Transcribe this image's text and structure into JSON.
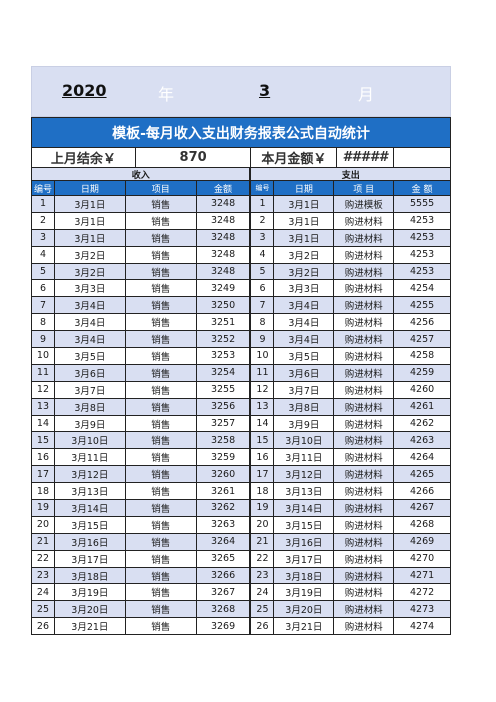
{
  "header": {
    "year": "2020",
    "year_label": "年",
    "month": "3",
    "month_label": "月"
  },
  "title": "模板-每月收入支出财务报表公式自动统计",
  "summary": {
    "last_balance_label": "上月结余￥",
    "last_balance_value": "870",
    "current_amount_label": "本月金额￥",
    "current_amount_value": "#####"
  },
  "sections": {
    "income": "收入",
    "expense": "支出"
  },
  "columns": {
    "no": "编号",
    "date": "日期",
    "item": "项目",
    "amount": "金额",
    "no2": "编号",
    "date2": "日期",
    "item2": "项 目",
    "amount2": "金 额"
  },
  "income": [
    [
      "1",
      "3月1日",
      "销售",
      "3248"
    ],
    [
      "2",
      "3月1日",
      "销售",
      "3248"
    ],
    [
      "3",
      "3月1日",
      "销售",
      "3248"
    ],
    [
      "4",
      "3月2日",
      "销售",
      "3248"
    ],
    [
      "5",
      "3月2日",
      "销售",
      "3248"
    ],
    [
      "6",
      "3月3日",
      "销售",
      "3249"
    ],
    [
      "7",
      "3月4日",
      "销售",
      "3250"
    ],
    [
      "8",
      "3月4日",
      "销售",
      "3251"
    ],
    [
      "9",
      "3月4日",
      "销售",
      "3252"
    ],
    [
      "10",
      "3月5日",
      "销售",
      "3253"
    ],
    [
      "11",
      "3月6日",
      "销售",
      "3254"
    ],
    [
      "12",
      "3月7日",
      "销售",
      "3255"
    ],
    [
      "13",
      "3月8日",
      "销售",
      "3256"
    ],
    [
      "14",
      "3月9日",
      "销售",
      "3257"
    ],
    [
      "15",
      "3月10日",
      "销售",
      "3258"
    ],
    [
      "16",
      "3月11日",
      "销售",
      "3259"
    ],
    [
      "17",
      "3月12日",
      "销售",
      "3260"
    ],
    [
      "18",
      "3月13日",
      "销售",
      "3261"
    ],
    [
      "19",
      "3月14日",
      "销售",
      "3262"
    ],
    [
      "20",
      "3月15日",
      "销售",
      "3263"
    ],
    [
      "21",
      "3月16日",
      "销售",
      "3264"
    ],
    [
      "22",
      "3月17日",
      "销售",
      "3265"
    ],
    [
      "23",
      "3月18日",
      "销售",
      "3266"
    ],
    [
      "24",
      "3月19日",
      "销售",
      "3267"
    ],
    [
      "25",
      "3月20日",
      "销售",
      "3268"
    ],
    [
      "26",
      "3月21日",
      "销售",
      "3269"
    ]
  ],
  "expense": [
    [
      "1",
      "3月1日",
      "购进模板",
      "5555"
    ],
    [
      "2",
      "3月1日",
      "购进材料",
      "4253"
    ],
    [
      "3",
      "3月1日",
      "购进材料",
      "4253"
    ],
    [
      "4",
      "3月2日",
      "购进材料",
      "4253"
    ],
    [
      "5",
      "3月2日",
      "购进材料",
      "4253"
    ],
    [
      "6",
      "3月3日",
      "购进材料",
      "4254"
    ],
    [
      "7",
      "3月4日",
      "购进材料",
      "4255"
    ],
    [
      "8",
      "3月4日",
      "购进材料",
      "4256"
    ],
    [
      "9",
      "3月4日",
      "购进材料",
      "4257"
    ],
    [
      "10",
      "3月5日",
      "购进材料",
      "4258"
    ],
    [
      "11",
      "3月6日",
      "购进材料",
      "4259"
    ],
    [
      "12",
      "3月7日",
      "购进材料",
      "4260"
    ],
    [
      "13",
      "3月8日",
      "购进材料",
      "4261"
    ],
    [
      "14",
      "3月9日",
      "购进材料",
      "4262"
    ],
    [
      "15",
      "3月10日",
      "购进材料",
      "4263"
    ],
    [
      "16",
      "3月11日",
      "购进材料",
      "4264"
    ],
    [
      "17",
      "3月12日",
      "购进材料",
      "4265"
    ],
    [
      "18",
      "3月13日",
      "购进材料",
      "4266"
    ],
    [
      "19",
      "3月14日",
      "购进材料",
      "4267"
    ],
    [
      "20",
      "3月15日",
      "购进材料",
      "4268"
    ],
    [
      "21",
      "3月16日",
      "购进材料",
      "4269"
    ],
    [
      "22",
      "3月17日",
      "购进材料",
      "4270"
    ],
    [
      "23",
      "3月18日",
      "购进材料",
      "4271"
    ],
    [
      "24",
      "3月19日",
      "购进材料",
      "4272"
    ],
    [
      "25",
      "3月20日",
      "购进材料",
      "4273"
    ],
    [
      "26",
      "3月21日",
      "购进材料",
      "4274"
    ]
  ]
}
